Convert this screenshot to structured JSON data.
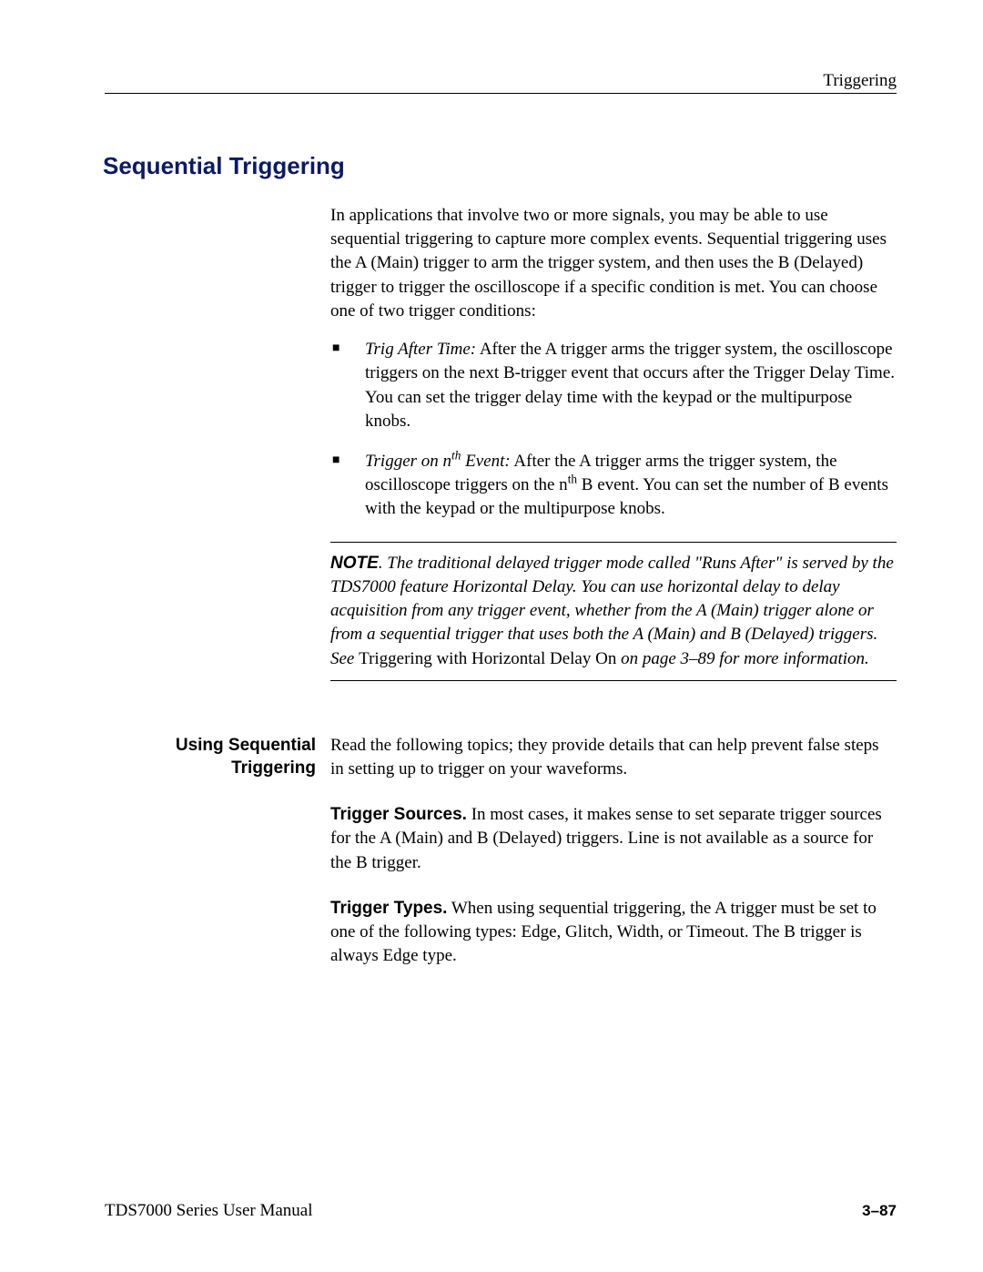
{
  "header": {
    "running_head": "Triggering"
  },
  "section": {
    "title": "Sequential Triggering"
  },
  "intro": "In applications that involve two or more signals, you may be able to use sequential triggering to capture more complex events. Sequential triggering uses the A (Main) trigger to arm the trigger system, and then uses the B (Delayed) trigger to trigger the oscilloscope if a specific condition is met. You can choose one of two trigger conditions:",
  "bullets": {
    "b1_title": "Trig After Time:",
    "b1_body": " After the A trigger arms the trigger system, the oscilloscope triggers on the next B-trigger event that occurs after the Trigger Delay Time. You can set the trigger delay time with the keypad or the multipurpose knobs.",
    "b2_title_pre": "Trigger on n",
    "b2_title_sup": "th",
    "b2_title_post": " Event:",
    "b2_body_pre": " After the A trigger arms the trigger system, the oscilloscope triggers on the n",
    "b2_body_sup": "th",
    "b2_body_post": " B event. You can set the number of B events with the keypad or the multipurpose knobs."
  },
  "note": {
    "label": "NOTE",
    "body_pre": ". The traditional delayed trigger mode called \"Runs After\" is served by the TDS7000 feature Horizontal Delay. You can use horizontal delay to delay acquisition from any trigger event, whether from the A (Main) trigger alone or from a sequential trigger that uses both the A (Main) and B (Delayed) triggers. See ",
    "body_nonital": "Triggering with Horizontal Delay On",
    "body_post": " on page 3–89 for more information."
  },
  "subsection": {
    "side_label_l1": "Using Sequential",
    "side_label_l2": "Triggering",
    "para1": "Read the following topics; they provide details that can help prevent false steps in setting up to trigger on your waveforms.",
    "p2_label": "Trigger Sources.",
    "p2_body": " In most cases, it makes sense to set separate trigger sources for the A (Main) and B (Delayed) triggers. Line is not available as a source for the B trigger.",
    "p3_label": "Trigger Types.",
    "p3_body": " When using sequential triggering, the A trigger must be set to one of the following types: Edge, Glitch, Width, or Timeout. The B trigger is always Edge type."
  },
  "footer": {
    "manual": "TDS7000 Series User Manual",
    "page": "3–87"
  }
}
